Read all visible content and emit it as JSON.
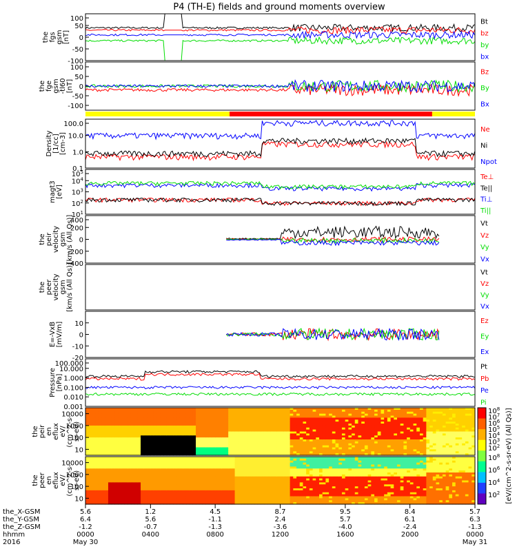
{
  "title": "P4 (TH-E) fields and ground moments overview",
  "colors": {
    "black": "#000000",
    "red": "#ff0000",
    "green": "#00dd00",
    "blue": "#0000ff",
    "yellow": "#ffff00"
  },
  "chart_data": [
    {
      "type": "line",
      "id": "fgs",
      "ylabel": [
        "the",
        "fgs",
        "gsm",
        "[nT]"
      ],
      "ylim": [
        -100,
        100
      ],
      "yticks": [
        100,
        50,
        0,
        -50,
        -100
      ],
      "legend": [
        {
          "name": "Bt",
          "color": "black"
        },
        {
          "name": "bz",
          "color": "red"
        },
        {
          "name": "by",
          "color": "green"
        },
        {
          "name": "bx",
          "color": "blue"
        }
      ]
    },
    {
      "type": "line",
      "id": "fge",
      "ylabel": [
        "the",
        "fge",
        "gsm",
        "-tl60",
        "[nT]"
      ],
      "ylim": [
        -125,
        125
      ],
      "yticks": [
        100,
        50,
        0,
        -50,
        -100
      ],
      "legend": [
        {
          "name": "Bz",
          "color": "red"
        },
        {
          "name": "By",
          "color": "green"
        },
        {
          "name": "Bx",
          "color": "blue"
        }
      ]
    },
    {
      "type": "line",
      "id": "density",
      "log": true,
      "ylabel": [
        "Density",
        "[1/cc]",
        "[cm-3]"
      ],
      "ylim_exp": [
        -1,
        2
      ],
      "yticks": [
        "100.0",
        "10.0",
        "1.0",
        "0.1"
      ],
      "legend": [
        {
          "name": "Ne",
          "color": "red"
        },
        {
          "name": "Ni",
          "color": "black"
        },
        {
          "name": "Npot",
          "color": "blue"
        }
      ]
    },
    {
      "type": "line",
      "id": "temperature",
      "log": true,
      "ylabel": [
        "magt3",
        "[eV]"
      ],
      "ylim_exp": [
        1,
        5
      ],
      "yticks": [
        "10^5",
        "10^4",
        "10^3",
        "10^2",
        "10^1"
      ],
      "legend": [
        {
          "name": "Te⊥",
          "color": "red"
        },
        {
          "name": "Te||",
          "color": "black"
        },
        {
          "name": "Ti⊥",
          "color": "blue"
        },
        {
          "name": "Ti||",
          "color": "green"
        }
      ]
    },
    {
      "type": "line",
      "id": "peir_velocity",
      "ylabel": [
        "the",
        "peir",
        "velocity",
        "gsm",
        "[km/s (All Qs)]"
      ],
      "ylim": [
        -400,
        400
      ],
      "yticks": [
        400,
        200,
        0,
        -200,
        -400
      ],
      "legend": [
        {
          "name": "Vt",
          "color": "black"
        },
        {
          "name": "Vz",
          "color": "red"
        },
        {
          "name": "Vy",
          "color": "green"
        },
        {
          "name": "Vx",
          "color": "blue"
        }
      ]
    },
    {
      "type": "line",
      "id": "peer_velocity",
      "ylabel": [
        "the",
        "peer",
        "velocity",
        "gsm",
        "[km/s (All Qs)]"
      ],
      "legend": [
        {
          "name": "Vt",
          "color": "black"
        },
        {
          "name": "Vz",
          "color": "red"
        },
        {
          "name": "Vy",
          "color": "green"
        },
        {
          "name": "Vx",
          "color": "blue"
        }
      ]
    },
    {
      "type": "line",
      "id": "efield",
      "ylabel": [
        "E=-VxB",
        "[mV/m]"
      ],
      "ylim": [
        -20,
        20
      ],
      "yticks": [
        10,
        0,
        -10,
        -20
      ],
      "legend": [
        {
          "name": "Ez",
          "color": "red"
        },
        {
          "name": "Ey",
          "color": "green"
        },
        {
          "name": "Ex",
          "color": "blue"
        }
      ]
    },
    {
      "type": "line",
      "id": "pressure",
      "log": true,
      "ylabel": [
        "Pressure",
        "[nPa]"
      ],
      "ylim_exp": [
        -3,
        2
      ],
      "yticks": [
        "100.000",
        "10.000",
        "1.000",
        "0.100",
        "0.010",
        "0.001"
      ],
      "legend": [
        {
          "name": "Pt",
          "color": "black"
        },
        {
          "name": "Pb",
          "color": "red"
        },
        {
          "name": "Pe",
          "color": "blue"
        },
        {
          "name": "Pi",
          "color": "green"
        }
      ]
    },
    {
      "type": "heatmap",
      "id": "peir_eflux",
      "ylabel": [
        "the",
        "peir",
        "en",
        "eflux",
        "eV/",
        "(cm^2-s-",
        "sr-eV)"
      ],
      "yticks": [
        "10000",
        "1000",
        "100",
        "10"
      ]
    },
    {
      "type": "heatmap",
      "id": "peer_eflux",
      "ylabel": [
        "the",
        "peer",
        "en",
        "eflux",
        "eV/",
        "(cm^2-s-",
        "sr-eV)"
      ],
      "yticks": [
        "10000",
        "1000",
        "100",
        "10"
      ]
    }
  ],
  "colorbar": {
    "label": "[eV/(cm^2-s-sr-eV) (All Qs)]",
    "top_ticks": [
      "10^8",
      "10^7",
      "10^6",
      "10^5",
      "10^4",
      "10^3",
      "10^2"
    ],
    "bottom_ticks": [
      "10^8",
      "10^6",
      "10^4",
      "10^2"
    ]
  },
  "x_axis": {
    "rows": [
      {
        "label": "the_X-GSM",
        "values": [
          "5.6",
          "1.2",
          "4.5",
          "8.7",
          "9.5",
          "8.4",
          "5.7"
        ]
      },
      {
        "label": "the_Y-GSM",
        "values": [
          "6.4",
          "5.6",
          "-1.1",
          "2.4",
          "5.7",
          "6.1",
          "6.3"
        ]
      },
      {
        "label": "the_Z-GSM",
        "values": [
          "-1.2",
          "-0.7",
          "-1.3",
          "-3.6",
          "-4.0",
          "-2.4",
          "-1.3"
        ]
      },
      {
        "label": "hhmm",
        "values": [
          "0000",
          "0400",
          "0800",
          "1200",
          "1600",
          "2000",
          "0000"
        ]
      },
      {
        "label": "2016",
        "values": [
          "May 30",
          "",
          "",
          "",
          "",
          "",
          "May 31"
        ]
      }
    ]
  }
}
